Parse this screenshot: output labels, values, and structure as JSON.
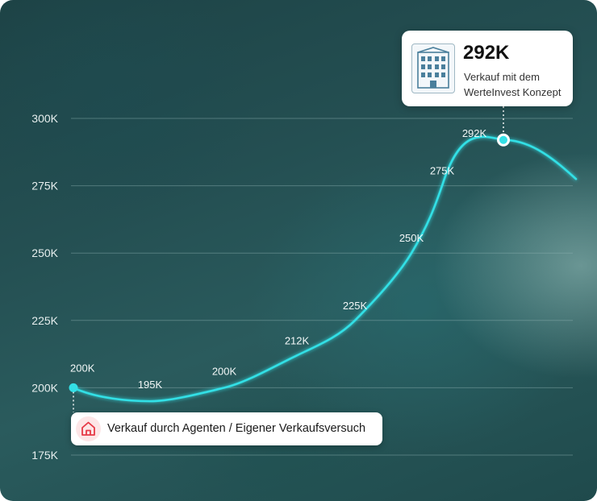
{
  "chart_data": {
    "type": "line",
    "y_ticks": [
      "300K",
      "275K",
      "250K",
      "225K",
      "200K",
      "175K"
    ],
    "y_tick_values": [
      300,
      275,
      250,
      225,
      200,
      175
    ],
    "ylim": [
      175,
      300
    ],
    "grid": true,
    "series": [
      {
        "points": [
          {
            "label": "200K",
            "value": 200
          },
          {
            "label": "195K",
            "value": 195
          },
          {
            "label": "200K",
            "value": 200
          },
          {
            "label": "212K",
            "value": 212
          },
          {
            "label": "225K",
            "value": 225
          },
          {
            "label": "250K",
            "value": 250
          },
          {
            "label": "275K",
            "value": 275
          },
          {
            "label": "292K",
            "value": 292
          }
        ]
      }
    ],
    "start_callout": {
      "text": "Verkauf durch Agenten / Eigener Verkaufsversuch"
    },
    "end_callout": {
      "value": "292K",
      "line1": "Verkauf mit dem",
      "line2": "WerteInvest Konzept"
    }
  },
  "colors": {
    "line": "#33e0e6",
    "grid": "#8fb2b2",
    "house_icon": "#e63946",
    "building_icon": "#4a7f9c"
  },
  "icons": {
    "start": "house-icon",
    "end": "building-icon"
  }
}
